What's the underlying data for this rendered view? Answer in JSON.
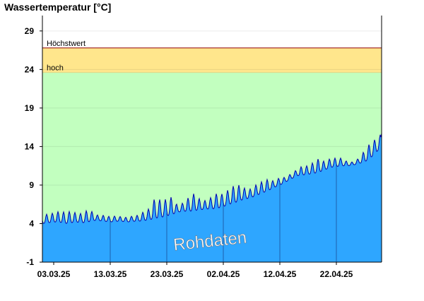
{
  "chart_data": {
    "type": "area",
    "title": "Wassertemperatur [°C]",
    "ylim": [
      -1,
      31
    ],
    "yticks": [
      29,
      24,
      19,
      14,
      9,
      4,
      -1
    ],
    "x_start": "01.03.25",
    "x_end": "30.04.25",
    "xtick_labels": [
      "03.03.25",
      "13.03.25",
      "23.03.25",
      "02.04.25",
      "12.04.25",
      "22.04.25"
    ],
    "bands": [
      {
        "label": "hoch",
        "from": 23.6,
        "to": 26.8,
        "color": "#ffe68c"
      },
      {
        "label": "",
        "from": -1,
        "to": 23.6,
        "color": "#c2ffbf"
      }
    ],
    "threshold_line": {
      "label": "Höchstwert",
      "value": 26.8,
      "color": "#9b1c1c"
    },
    "area_color": "#2ea6ff",
    "line_color": "#0000b0",
    "watermark": "Rohdaten",
    "x": [
      "01.03.25",
      "02.03.25",
      "03.03.25",
      "04.03.25",
      "05.03.25",
      "06.03.25",
      "07.03.25",
      "08.03.25",
      "09.03.25",
      "10.03.25",
      "11.03.25",
      "12.03.25",
      "13.03.25",
      "14.03.25",
      "15.03.25",
      "16.03.25",
      "17.03.25",
      "18.03.25",
      "19.03.25",
      "20.03.25",
      "21.03.25",
      "22.03.25",
      "23.03.25",
      "24.03.25",
      "25.03.25",
      "26.03.25",
      "27.03.25",
      "28.03.25",
      "29.03.25",
      "30.03.25",
      "31.03.25",
      "01.04.25",
      "02.04.25",
      "03.04.25",
      "04.04.25",
      "05.04.25",
      "06.04.25",
      "07.04.25",
      "08.04.25",
      "09.04.25",
      "10.04.25",
      "11.04.25",
      "12.04.25",
      "13.04.25",
      "14.04.25",
      "15.04.25",
      "16.04.25",
      "17.04.25",
      "18.04.25",
      "19.04.25",
      "20.04.25",
      "21.04.25",
      "22.04.25",
      "23.04.25",
      "24.04.25",
      "25.04.25",
      "26.04.25",
      "27.04.25",
      "28.04.25",
      "29.04.25",
      "30.04.25"
    ],
    "series": [
      {
        "daily_max": [
          5.3,
          5.2,
          5.4,
          5.6,
          5.5,
          5.6,
          5.4,
          5.3,
          5.8,
          5.5,
          5.0,
          5.1,
          4.9,
          5.0,
          4.9,
          4.8,
          5.0,
          5.1,
          5.6,
          6.0,
          7.5,
          7.0,
          7.2,
          7.5,
          6.2,
          6.8,
          7.5,
          8.0,
          7.0,
          7.0,
          7.5,
          8.0,
          7.8,
          8.5,
          9.0,
          9.0,
          8.5,
          8.5,
          9.2,
          9.5,
          9.8,
          9.5,
          10.0,
          10.0,
          10.5,
          11.0,
          11.5,
          11.5,
          12.0,
          12.5,
          12.0,
          12.5,
          12.5,
          12.5,
          12.0,
          12.0,
          12.5,
          13.5,
          14.5,
          15.0,
          15.7
        ],
        "daily_min": [
          4.0,
          4.1,
          4.2,
          4.2,
          4.0,
          4.1,
          4.2,
          4.1,
          4.2,
          4.4,
          4.4,
          4.3,
          4.2,
          4.3,
          4.3,
          4.2,
          4.3,
          4.3,
          4.4,
          4.5,
          4.7,
          4.8,
          5.0,
          5.2,
          5.5,
          5.6,
          5.6,
          5.7,
          5.8,
          5.9,
          5.9,
          6.0,
          6.2,
          6.5,
          6.7,
          7.0,
          7.2,
          7.4,
          7.7,
          8.0,
          8.3,
          8.7,
          9.0,
          9.4,
          9.8,
          10.2,
          10.3,
          10.4,
          10.5,
          10.7,
          11.0,
          11.3,
          11.4,
          11.5,
          11.5,
          11.6,
          11.8,
          12.0,
          12.5,
          13.2,
          14.0
        ]
      }
    ]
  }
}
